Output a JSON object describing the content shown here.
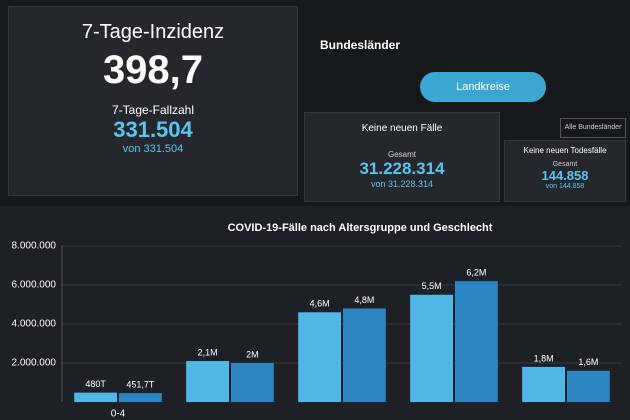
{
  "panels": {
    "incidence": {
      "title": "7-Tage-Inzidenz",
      "value": "398,7",
      "subtitle": "7-Tage-Fallzahl",
      "count": "331.504",
      "of": "von 331.504"
    },
    "tabs": {
      "tab": "Bundesländer",
      "active": "Landkreise",
      "filter": "Alle Bundesländer"
    },
    "cases": {
      "title": "Keine neuen Fälle",
      "label": "Gesamt",
      "value": "31.228.314",
      "of": "von 31.228.314"
    },
    "deaths": {
      "title": "Keine neuen Todesfälle",
      "label": "Gesamt",
      "value": "144.858",
      "of": "von 144.858"
    }
  },
  "chart_data": {
    "type": "bar",
    "title": "COVID-19-Fälle nach Altersgruppe und Geschlecht",
    "categories": [
      "0-4",
      null,
      null,
      null,
      null
    ],
    "series": [
      {
        "color": "#4fb8e6",
        "values": [
          480000,
          2100000,
          4600000,
          5500000,
          1800000
        ],
        "value_labels": [
          "480T",
          "2,1M",
          "4,6M",
          "5,5M",
          "1,8M"
        ]
      },
      {
        "color": "#2b86c2",
        "values": [
          451700,
          2000000,
          4800000,
          6200000,
          1600000
        ],
        "value_labels": [
          "451,7T",
          "2M",
          "4,8M",
          "6,2M",
          "1,6M"
        ]
      }
    ],
    "ylim": [
      0,
      8000000
    ],
    "yticks": [
      {
        "value": 2000000,
        "label": "2.000.000"
      },
      {
        "value": 4000000,
        "label": "4.000.000"
      },
      {
        "value": 6000000,
        "label": "6.000.000"
      },
      {
        "value": 8000000,
        "label": "8.000.000"
      }
    ],
    "grid": true
  }
}
